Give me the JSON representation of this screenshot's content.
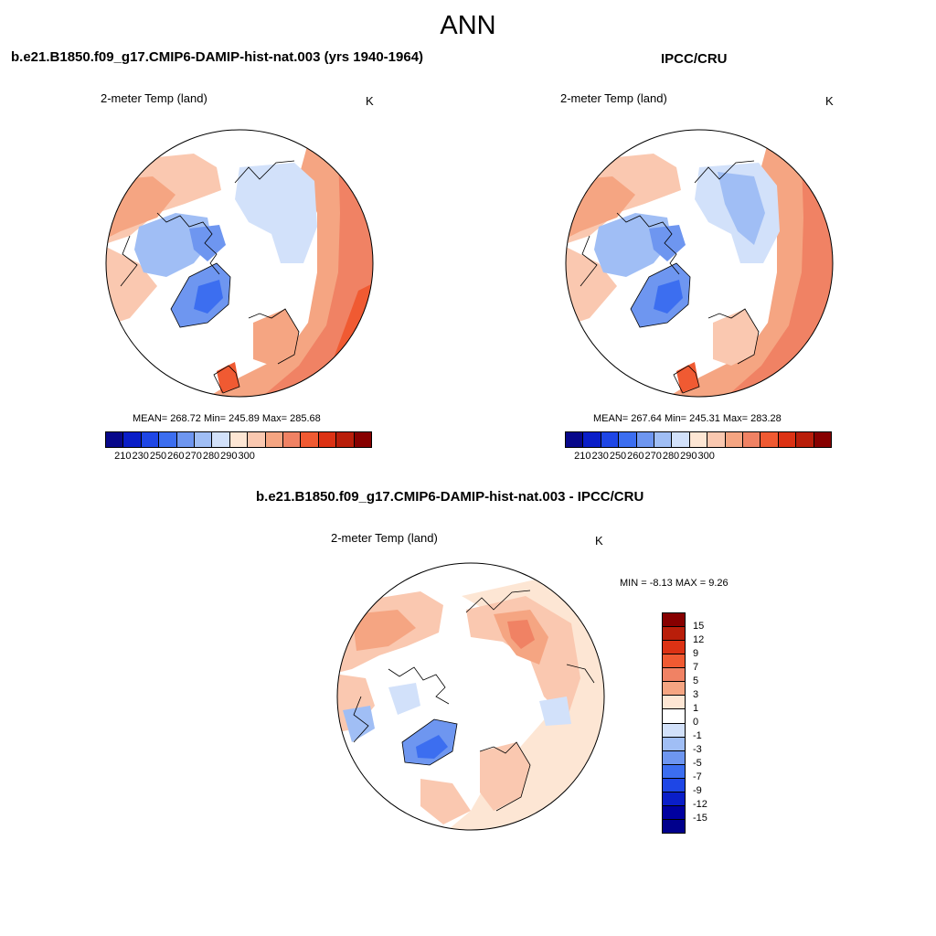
{
  "figure": {
    "season_title": "ANN",
    "colors": {
      "abs_scale": [
        "#08088a",
        "#0a1ec8",
        "#1e46e6",
        "#3c6ef0",
        "#6e96f0",
        "#a0bef5",
        "#d2e1fa",
        "#fde6d4",
        "#fac8b0",
        "#f5a582",
        "#f08264",
        "#f05a32",
        "#dc3214",
        "#b91e0a",
        "#870000"
      ],
      "diff_scale": [
        "#870000",
        "#b91e0a",
        "#dc3214",
        "#f05a32",
        "#f08264",
        "#f5a582",
        "#fde6d4",
        "#ffffff",
        "#d2e1fa",
        "#a0bef5",
        "#6e96f0",
        "#3c6ef0",
        "#1e46e6",
        "#0a1ec8",
        "#0000a0",
        "#00008c"
      ]
    }
  },
  "panel_model": {
    "case_title": "b.e21.B1850.f09_g17.CMIP6-DAMIP-hist-nat.003 (yrs 1940-1964)",
    "variable": "2-meter Temp (land)",
    "units": "K",
    "stats": "MEAN= 268.72  Min= 245.89  Max= 285.68",
    "colorbar_ticks": [
      "210",
      "230",
      "250",
      "260",
      "270",
      "280",
      "290",
      "300"
    ]
  },
  "panel_obs": {
    "case_title": "IPCC/CRU",
    "variable": "2-meter Temp (land)",
    "units": "K",
    "stats": "MEAN= 267.64  Min= 245.31  Max= 283.28",
    "colorbar_ticks": [
      "210",
      "230",
      "250",
      "260",
      "270",
      "280",
      "290",
      "300"
    ]
  },
  "panel_diff": {
    "case_title": "b.e21.B1850.f09_g17.CMIP6-DAMIP-hist-nat.003 - IPCC/CRU",
    "variable": "2-meter Temp (land)",
    "units": "K",
    "minmax": "MIN =  -8.13 MAX =   9.26",
    "colorbar_ticks": [
      "15",
      "12",
      "9",
      "7",
      "5",
      "3",
      "1",
      "0",
      "-1",
      "-3",
      "-5",
      "-7",
      "-9",
      "-12",
      "-15"
    ]
  }
}
